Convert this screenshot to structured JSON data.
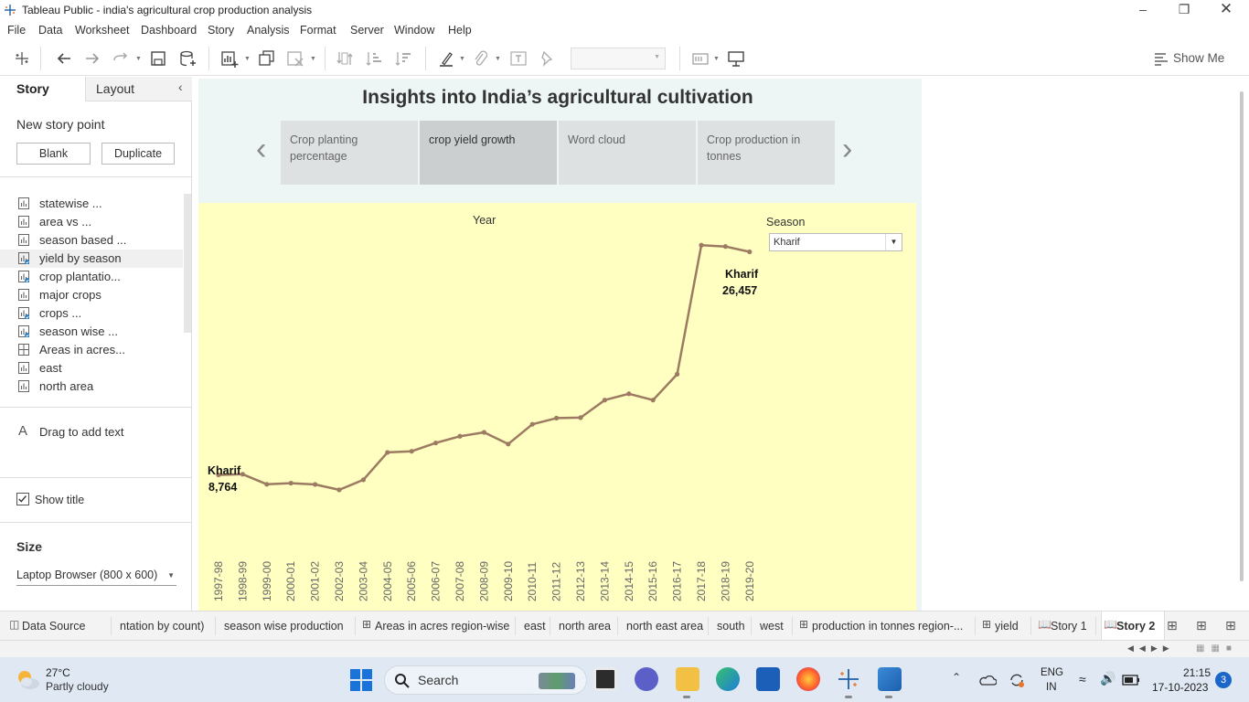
{
  "window": {
    "title": "Tableau Public - india's agricultural crop production analysis"
  },
  "menu": [
    "File",
    "Data",
    "Worksheet",
    "Dashboard",
    "Story",
    "Analysis",
    "Format",
    "Server",
    "Window",
    "Help"
  ],
  "toolbar": {
    "show_me": "Show Me"
  },
  "left_panel": {
    "tab_story": "Story",
    "tab_layout": "Layout",
    "new_story_point": "New story point",
    "blank_button": "Blank",
    "duplicate_button": "Duplicate",
    "sheets": [
      {
        "label": "statewise ...",
        "icon": "chart-icon",
        "used": false
      },
      {
        "label": " area vs ...",
        "icon": "chart-icon",
        "used": false
      },
      {
        "label": "season based ...",
        "icon": "chart-icon",
        "used": false
      },
      {
        "label": "yield by season",
        "icon": "chart-icon",
        "used": true
      },
      {
        "label": "crop plantatio...",
        "icon": "chart-icon",
        "used": true
      },
      {
        "label": "major crops",
        "icon": "chart-icon",
        "used": false
      },
      {
        "label": "crops ...",
        "icon": "chart-icon",
        "used": true
      },
      {
        "label": "season wise ...",
        "icon": "chart-icon",
        "used": true
      },
      {
        "label": "Areas in acres...",
        "icon": "dashboard-icon",
        "used": false
      },
      {
        "label": "east",
        "icon": "chart-icon",
        "used": false
      },
      {
        "label": "north area",
        "icon": "chart-icon",
        "used": false
      }
    ],
    "drag_text": "Drag to add text",
    "show_title": "Show title",
    "size_heading": "Size",
    "size_value": "Laptop Browser (800 x 600)"
  },
  "story": {
    "title": "Insights into India’s agricultural cultivation",
    "points": [
      {
        "label": "Crop planting percentage",
        "active": false
      },
      {
        "label": "crop yield growth",
        "active": true
      },
      {
        "label": "Word cloud",
        "active": false
      },
      {
        "label": "Crop production in tonnes",
        "active": false
      }
    ]
  },
  "filter": {
    "label": "Season",
    "value": "Kharif"
  },
  "chart_data": {
    "type": "line",
    "xlabel": "Year",
    "ylabel": "",
    "color": "#9c7b62",
    "x": [
      "1997-98",
      "1998-99",
      "1999-00",
      "2000-01",
      "2001-02",
      "2002-03",
      "2003-04",
      "2004-05",
      "2005-06",
      "2006-07",
      "2007-08",
      "2008-09",
      "2009-10",
      "2010-11",
      "2011-12",
      "2012-13",
      "2013-14",
      "2014-15",
      "2015-16",
      "2016-17",
      "2017-18",
      "2018-19",
      "2019-20"
    ],
    "values": [
      8764,
      8820,
      8020,
      8110,
      8010,
      7580,
      8380,
      10550,
      10640,
      11300,
      11830,
      12140,
      11210,
      12780,
      13270,
      13310,
      14700,
      15200,
      14700,
      16750,
      26980,
      26880,
      26457
    ],
    "annotations": [
      {
        "series": "Kharif",
        "value": "8,764",
        "at": "1997-98"
      },
      {
        "series": "Kharif",
        "value": "26,457",
        "at": "2019-20"
      }
    ]
  },
  "sheet_tabs": [
    {
      "label": "Data Source",
      "icon": "database-icon"
    },
    {
      "label": "ntation by count)",
      "icon": ""
    },
    {
      "label": "season wise production",
      "icon": ""
    },
    {
      "label": "Areas in acres region-wise",
      "icon": "dashboard-icon"
    },
    {
      "label": "east",
      "icon": ""
    },
    {
      "label": "north area",
      "icon": ""
    },
    {
      "label": "north east area",
      "icon": ""
    },
    {
      "label": "south",
      "icon": ""
    },
    {
      "label": "west",
      "icon": ""
    },
    {
      "label": "production in tonnes region-...",
      "icon": "dashboard-icon"
    },
    {
      "label": "yield",
      "icon": "dashboard-icon"
    },
    {
      "label": "Story 1",
      "icon": "story-icon"
    },
    {
      "label": "Story 2",
      "icon": "story-icon"
    }
  ],
  "taskbar": {
    "weather_temp": "27°C",
    "weather_desc": "Partly cloudy",
    "search": "Search",
    "lang1": "ENG",
    "lang2": "IN",
    "time": "21:15",
    "date": "17-10-2023",
    "notif_count": "3"
  }
}
